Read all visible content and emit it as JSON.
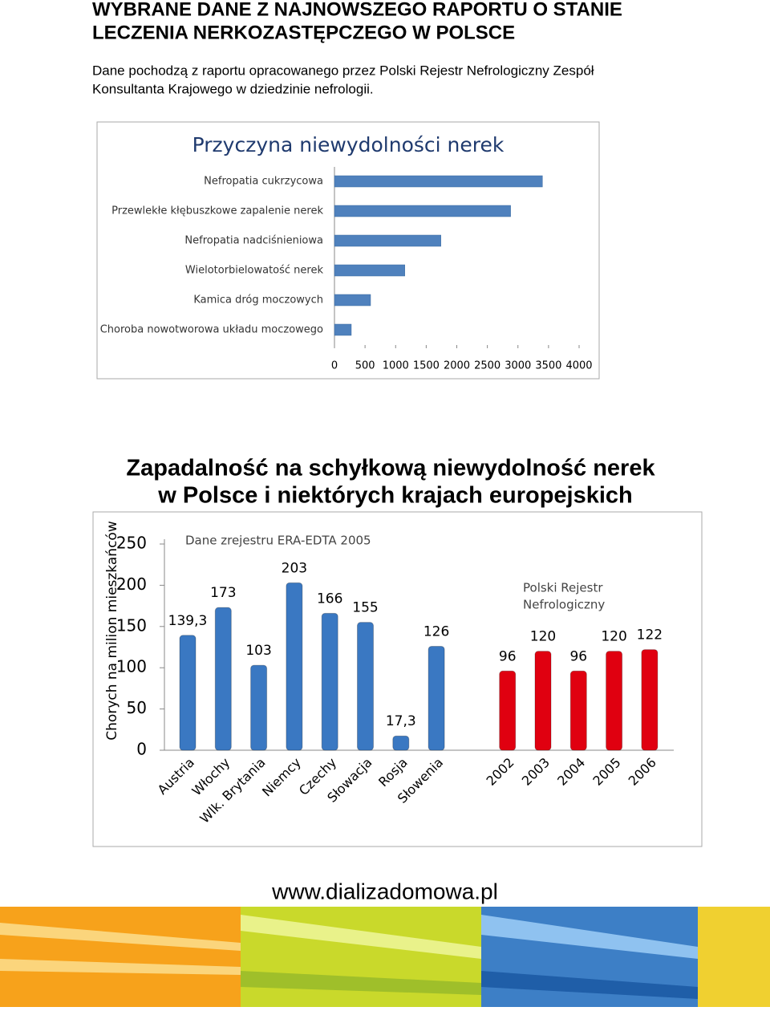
{
  "header": {
    "title_line1": "WYBRANE DANE Z NAJNOWSZEGO RAPORTU O STANIE",
    "title_line2": "LECZENIA NERKOZASTĘPCZEGO W POLSCE",
    "intro_line1": "Dane pochodzą z raportu opracowanego przez Polski Rejestr Nefrologiczny Zespół",
    "intro_line2": "Konsultanta Krajowego w dziedzinie nefrologii."
  },
  "chart_data": [
    {
      "type": "bar",
      "horizontal": true,
      "title": "Przyczyna niewydolności nerek",
      "categories": [
        "Nefropatia cukrzycowa",
        "Przewlekłe kłębuszkowe zapalenie nerek",
        "Nefropatia nadciśnieniowa",
        "Wielotorbielowatość nerek",
        "Kamica dróg moczowych",
        "Choroba nowotworowa układu moczowego"
      ],
      "values": [
        3400,
        2880,
        1740,
        1150,
        590,
        275
      ],
      "color": "#4f81bd",
      "xlim": [
        0,
        4000
      ],
      "xticks": [
        0,
        500,
        1000,
        1500,
        2000,
        2500,
        3000,
        3500,
        4000
      ],
      "grid": false
    },
    {
      "type": "bar",
      "horizontal": false,
      "title_line1": "Zapadalność na schyłkową niewydolność nerek",
      "title_line2": "w Polsce i niektórych krajach europejskich",
      "ylabel": "Chorych na milion mieszkańców",
      "annotations": [
        "Dane  zrejestru ERA-EDTA 2005",
        "Polski Rejestr",
        "Nefrologiczny"
      ],
      "categories": [
        "Austria",
        "Włochy",
        "Wlk. Brytania",
        "Niemcy",
        "Czechy",
        "Słowacja",
        "Rosja",
        "Słowenia",
        "2002",
        "2003",
        "2004",
        "2005",
        "2006"
      ],
      "values": [
        139.3,
        173,
        103,
        203,
        166,
        155,
        17.3,
        126,
        96,
        120,
        96,
        120,
        122
      ],
      "value_labels": [
        "139,3",
        "173",
        "103",
        "203",
        "166",
        "155",
        "17,3",
        "126",
        "96",
        "120",
        "96",
        "120",
        "122"
      ],
      "colors": [
        "#3a78c2",
        "#3a78c2",
        "#3a78c2",
        "#3a78c2",
        "#3a78c2",
        "#3a78c2",
        "#3a78c2",
        "#3a78c2",
        "#e00010",
        "#e00010",
        "#e00010",
        "#e00010",
        "#e00010"
      ],
      "ylim": [
        0,
        250
      ],
      "yticks": [
        0,
        50,
        100,
        150,
        200,
        250
      ],
      "grid": false
    }
  ],
  "footer": {
    "url": "www.dializadomowa.pl"
  }
}
